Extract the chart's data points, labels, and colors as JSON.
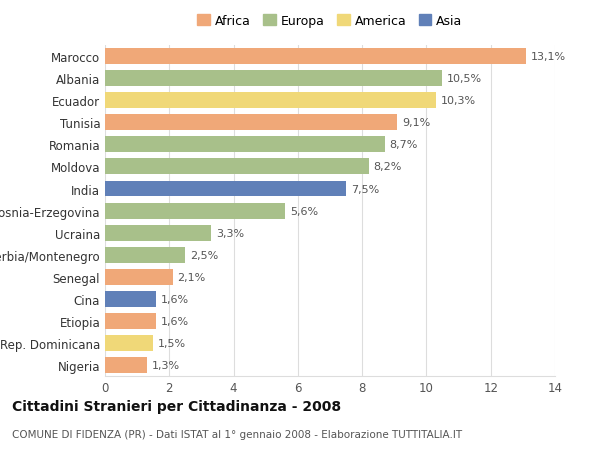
{
  "categories": [
    "Marocco",
    "Albania",
    "Ecuador",
    "Tunisia",
    "Romania",
    "Moldova",
    "India",
    "Bosnia-Erzegovina",
    "Ucraina",
    "Serbia/Montenegro",
    "Senegal",
    "Cina",
    "Etiopia",
    "Rep. Dominicana",
    "Nigeria"
  ],
  "values": [
    13.1,
    10.5,
    10.3,
    9.1,
    8.7,
    8.2,
    7.5,
    5.6,
    3.3,
    2.5,
    2.1,
    1.6,
    1.6,
    1.5,
    1.3
  ],
  "labels": [
    "13,1%",
    "10,5%",
    "10,3%",
    "9,1%",
    "8,7%",
    "8,2%",
    "7,5%",
    "5,6%",
    "3,3%",
    "2,5%",
    "2,1%",
    "1,6%",
    "1,6%",
    "1,5%",
    "1,3%"
  ],
  "continents": [
    "Africa",
    "Europa",
    "America",
    "Africa",
    "Europa",
    "Europa",
    "Asia",
    "Europa",
    "Europa",
    "Europa",
    "Africa",
    "Asia",
    "Africa",
    "America",
    "Africa"
  ],
  "continent_colors": {
    "Africa": "#F0A878",
    "Europa": "#A8C08A",
    "America": "#F0D878",
    "Asia": "#6080B8"
  },
  "legend_order": [
    "Africa",
    "Europa",
    "America",
    "Asia"
  ],
  "title": "Cittadini Stranieri per Cittadinanza - 2008",
  "subtitle": "COMUNE DI FIDENZA (PR) - Dati ISTAT al 1° gennaio 2008 - Elaborazione TUTTITALIA.IT",
  "xlim": [
    0,
    14
  ],
  "xticks": [
    0,
    2,
    4,
    6,
    8,
    10,
    12,
    14
  ],
  "background_color": "#ffffff",
  "grid_color": "#dddddd",
  "title_fontsize": 10,
  "subtitle_fontsize": 7.5,
  "label_fontsize": 8,
  "tick_fontsize": 8.5,
  "legend_fontsize": 9,
  "bar_height": 0.72
}
